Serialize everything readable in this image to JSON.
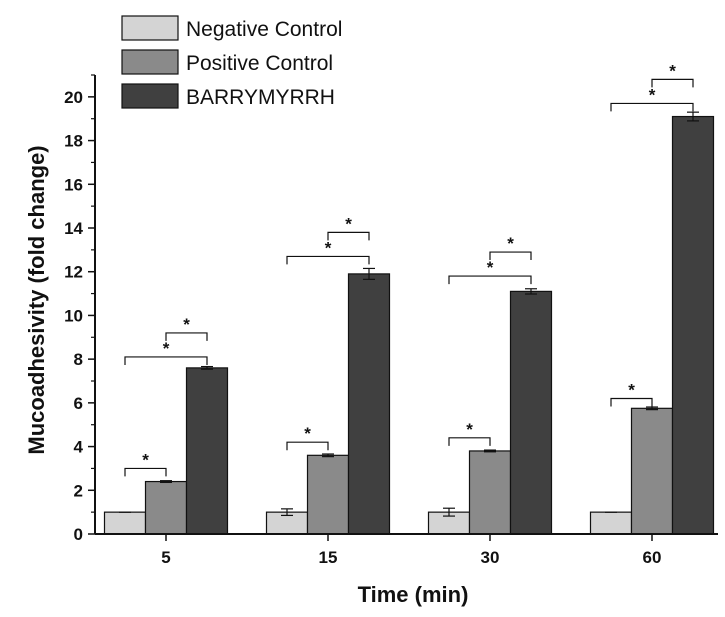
{
  "chart_data": {
    "type": "bar",
    "categories": [
      "5",
      "15",
      "30",
      "60"
    ],
    "xlabel": "Time (min)",
    "ylabel": "Mucoadhesivity (fold change)",
    "ylim": [
      0,
      21
    ],
    "yticks": [
      "0",
      "2",
      "4",
      "6",
      "8",
      "10",
      "12",
      "14",
      "16",
      "18",
      "20"
    ],
    "legend_position": "top-left",
    "series": [
      {
        "name": "Negative Control",
        "color": "#d4d4d4",
        "values": [
          1.0,
          1.0,
          1.0,
          1.0
        ],
        "errors": [
          0.0,
          0.15,
          0.18,
          0.0
        ]
      },
      {
        "name": "Positive Control",
        "color": "#8a8a8a",
        "values": [
          2.4,
          3.6,
          3.8,
          5.75
        ],
        "errors": [
          0.04,
          0.06,
          0.04,
          0.06
        ]
      },
      {
        "name": "BARRYMYRRH",
        "color": "#404040",
        "values": [
          7.6,
          11.9,
          11.1,
          19.1
        ],
        "errors": [
          0.06,
          0.25,
          0.12,
          0.2
        ]
      }
    ],
    "significance": [
      {
        "category": 0,
        "from": 0,
        "to": 1,
        "y": 3.0,
        "label": "*"
      },
      {
        "category": 0,
        "from": 0,
        "to": 2,
        "y": 8.1,
        "label": "*"
      },
      {
        "category": 0,
        "from": 1,
        "to": 2,
        "y": 9.2,
        "label": "*"
      },
      {
        "category": 1,
        "from": 0,
        "to": 1,
        "y": 4.2,
        "label": "*"
      },
      {
        "category": 1,
        "from": 0,
        "to": 2,
        "y": 12.7,
        "label": "*"
      },
      {
        "category": 1,
        "from": 1,
        "to": 2,
        "y": 13.8,
        "label": "*"
      },
      {
        "category": 2,
        "from": 0,
        "to": 1,
        "y": 4.4,
        "label": "*"
      },
      {
        "category": 2,
        "from": 0,
        "to": 2,
        "y": 11.8,
        "label": "*"
      },
      {
        "category": 2,
        "from": 1,
        "to": 2,
        "y": 12.9,
        "label": "*"
      },
      {
        "category": 3,
        "from": 0,
        "to": 1,
        "y": 6.2,
        "label": "*"
      },
      {
        "category": 3,
        "from": 0,
        "to": 2,
        "y": 19.7,
        "label": "*"
      },
      {
        "category": 3,
        "from": 1,
        "to": 2,
        "y": 20.8,
        "label": "*"
      }
    ]
  }
}
